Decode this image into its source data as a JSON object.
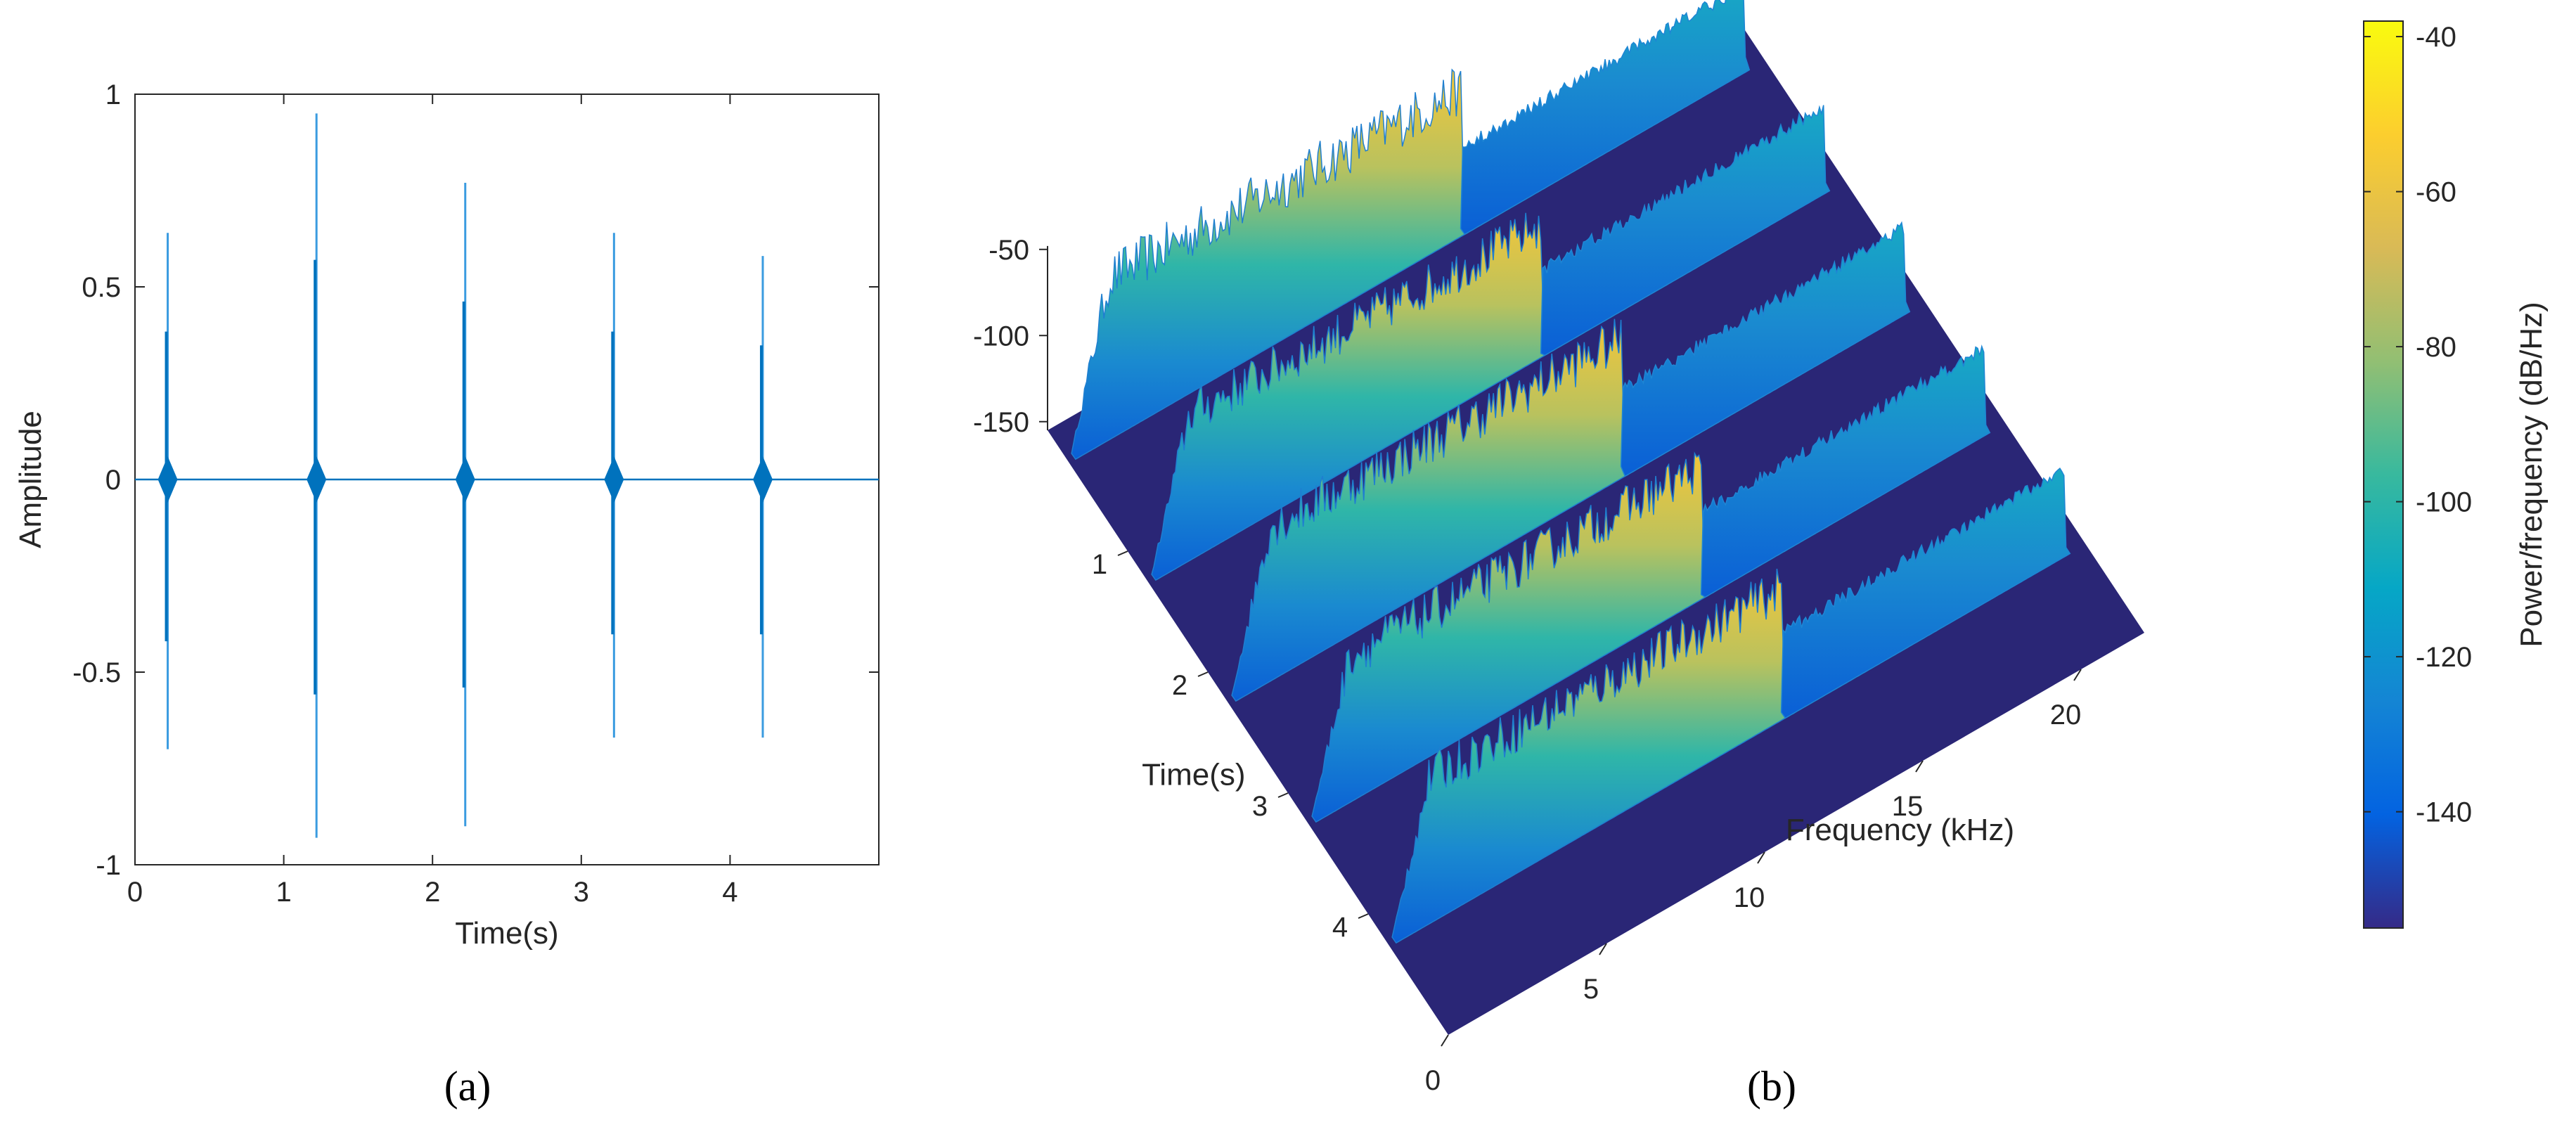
{
  "captions": {
    "a": "(a)",
    "b": "(b)"
  },
  "chart_data": [
    {
      "id": "a",
      "type": "line",
      "title": "",
      "xlabel": "Time(s)",
      "ylabel": "Amplitude",
      "xlim": [
        0,
        5
      ],
      "ylim": [
        -1,
        1
      ],
      "xticks": [
        0,
        1,
        2,
        3,
        4
      ],
      "xtick_labels": [
        "0",
        "1",
        "2",
        "3",
        "4"
      ],
      "yticks": [
        1,
        0.5,
        0,
        -0.5,
        -1
      ],
      "ytick_labels": [
        "1",
        "0.5",
        "0",
        "-0.5",
        "-1"
      ],
      "color": "#0072BD",
      "grid": false,
      "pulses": [
        {
          "t": 0.22,
          "max": 0.64,
          "min": -0.7
        },
        {
          "t": 1.22,
          "max": 0.95,
          "min": -0.93
        },
        {
          "t": 2.22,
          "max": 0.77,
          "min": -0.9
        },
        {
          "t": 3.22,
          "max": 0.64,
          "min": -0.67
        },
        {
          "t": 4.22,
          "max": 0.58,
          "min": -0.67
        }
      ]
    },
    {
      "id": "b",
      "type": "surface3d",
      "title": "",
      "xlabel": "Frequency (kHz)",
      "ylabel": "Time(s)",
      "zlabel": "",
      "xlim": [
        0,
        22
      ],
      "ylim": [
        0,
        5
      ],
      "zlim": [
        -155,
        -40
      ],
      "xticks": [
        0,
        5,
        10,
        15,
        20
      ],
      "xtick_labels": [
        "0",
        "5",
        "10",
        "15",
        "20"
      ],
      "yticks": [
        1,
        2,
        3,
        4
      ],
      "ytick_labels": [
        "1",
        "2",
        "3",
        "4"
      ],
      "zticks": [
        -50,
        -100,
        -150
      ],
      "ztick_labels": [
        "-50",
        "-100",
        "-150"
      ],
      "ridges": [
        {
          "time": 0.22,
          "peak_db": -45,
          "high_band_khz": [
            12.5,
            21.5
          ],
          "high_band_db": -105
        },
        {
          "time": 1.22,
          "peak_db": -55,
          "high_band_khz": [
            12.5,
            21.5
          ],
          "high_band_db": -105
        },
        {
          "time": 2.22,
          "peak_db": -50,
          "high_band_khz": [
            12.5,
            21.5
          ],
          "high_band_db": -105
        },
        {
          "time": 3.22,
          "peak_db": -55,
          "high_band_khz": [
            12.5,
            21.5
          ],
          "high_band_db": -105
        },
        {
          "time": 4.22,
          "peak_db": -55,
          "high_band_khz": [
            12.5,
            21.5
          ],
          "high_band_db": -105
        }
      ],
      "floor_db": -155,
      "colorbar": {
        "label": "Power/frequency (dB/Hz)",
        "range": [
          -155,
          -38
        ],
        "ticks": [
          -40,
          -60,
          -80,
          -100,
          -120,
          -140
        ],
        "tick_labels": [
          "-40",
          "-60",
          "-80",
          "-100",
          "-120",
          "-140"
        ],
        "colormap": "parula"
      }
    }
  ]
}
